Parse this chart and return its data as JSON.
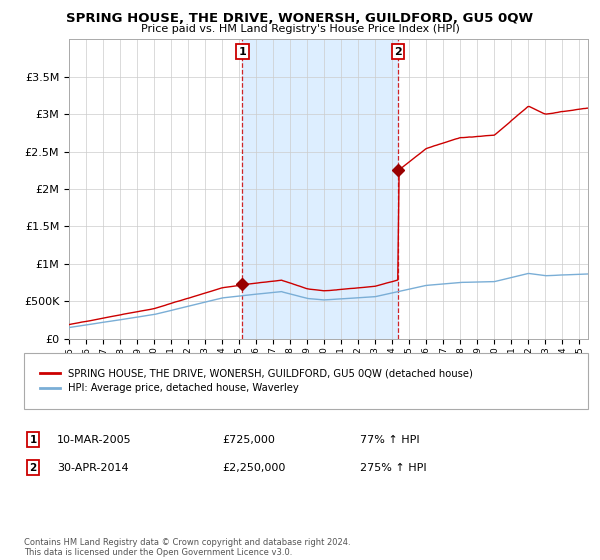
{
  "title": "SPRING HOUSE, THE DRIVE, WONERSH, GUILDFORD, GU5 0QW",
  "subtitle": "Price paid vs. HM Land Registry's House Price Index (HPI)",
  "legend_line1": "SPRING HOUSE, THE DRIVE, WONERSH, GUILDFORD, GU5 0QW (detached house)",
  "legend_line2": "HPI: Average price, detached house, Waverley",
  "footnote": "Contains HM Land Registry data © Crown copyright and database right 2024.\nThis data is licensed under the Open Government Licence v3.0.",
  "sale1_date": "10-MAR-2005",
  "sale1_price": "£725,000",
  "sale1_hpi": "77% ↑ HPI",
  "sale1_year": 2005.19,
  "sale1_value": 725000,
  "sale2_date": "30-APR-2014",
  "sale2_price": "£2,250,000",
  "sale2_hpi": "275% ↑ HPI",
  "sale2_year": 2014.33,
  "sale2_value": 2250000,
  "house_color": "#cc0000",
  "hpi_color": "#7aaed6",
  "shade_color": "#ddeeff",
  "vline_color": "#cc0000",
  "ylim": [
    0,
    4000000
  ],
  "xlim_start": 1995,
  "xlim_end": 2025.5,
  "background_color": "#ffffff",
  "grid_color": "#cccccc",
  "marker_color": "#990000"
}
